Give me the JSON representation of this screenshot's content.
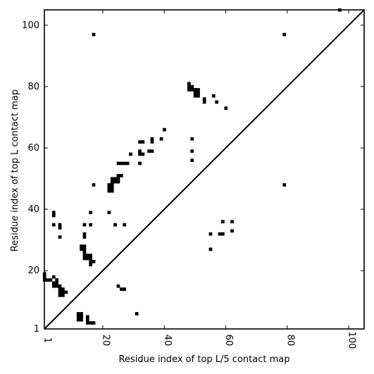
{
  "chart_data": {
    "type": "scatter",
    "title": "",
    "xlabel": "Residue index of top L/5 contact map",
    "ylabel": "Residue index of top L contact map",
    "xlim": [
      1,
      105
    ],
    "ylim": [
      1,
      105
    ],
    "x_ticks": [
      1,
      20,
      40,
      60,
      80,
      100
    ],
    "y_ticks": [
      1,
      20,
      40,
      60,
      80,
      100
    ],
    "x_tick_labels": [
      "1",
      "20",
      "40",
      "60",
      "80",
      "100"
    ],
    "y_tick_labels": [
      "1",
      "20",
      "40",
      "60",
      "80",
      "100"
    ],
    "grid": false,
    "diagonal": true,
    "marker_color": "#000000",
    "upper_contacts": [
      [
        1,
        19
      ],
      [
        1,
        18
      ],
      [
        1,
        17
      ],
      [
        2,
        17
      ],
      [
        3,
        17
      ],
      [
        4,
        16
      ],
      [
        4,
        15
      ],
      [
        5,
        15
      ],
      [
        4,
        18
      ],
      [
        5,
        17
      ],
      [
        5,
        16
      ],
      [
        6,
        15
      ],
      [
        6,
        14
      ],
      [
        7,
        14
      ],
      [
        6,
        13
      ],
      [
        7,
        13
      ],
      [
        6,
        12
      ],
      [
        7,
        12
      ],
      [
        8,
        13
      ],
      [
        4,
        39
      ],
      [
        4,
        38
      ],
      [
        4,
        35
      ],
      [
        6,
        35
      ],
      [
        6,
        34
      ],
      [
        6,
        31
      ],
      [
        13,
        28
      ],
      [
        14,
        28
      ],
      [
        13,
        27
      ],
      [
        14,
        27
      ],
      [
        14,
        26
      ],
      [
        14,
        25
      ],
      [
        15,
        25
      ],
      [
        16,
        25
      ],
      [
        14,
        24
      ],
      [
        15,
        24
      ],
      [
        16,
        24
      ],
      [
        16,
        23
      ],
      [
        17,
        23
      ],
      [
        16,
        22
      ],
      [
        14,
        35
      ],
      [
        14,
        32
      ],
      [
        14,
        31
      ],
      [
        16,
        35
      ],
      [
        16,
        39
      ],
      [
        17,
        48
      ],
      [
        17,
        97
      ],
      [
        22,
        48
      ],
      [
        23,
        48
      ],
      [
        22,
        47
      ],
      [
        23,
        47
      ],
      [
        22,
        46
      ],
      [
        23,
        46
      ],
      [
        23,
        49
      ],
      [
        24,
        49
      ],
      [
        25,
        49
      ],
      [
        23,
        50
      ],
      [
        24,
        50
      ],
      [
        25,
        50
      ],
      [
        25,
        51
      ],
      [
        26,
        51
      ],
      [
        22,
        39
      ],
      [
        24,
        35
      ],
      [
        27,
        35
      ],
      [
        25,
        55
      ],
      [
        26,
        55
      ],
      [
        27,
        55
      ],
      [
        28,
        55
      ],
      [
        29,
        58
      ],
      [
        32,
        55
      ],
      [
        32,
        58
      ],
      [
        33,
        58
      ],
      [
        32,
        59
      ],
      [
        32,
        62
      ],
      [
        33,
        62
      ],
      [
        35,
        59
      ],
      [
        36,
        59
      ],
      [
        36,
        62
      ],
      [
        36,
        63
      ],
      [
        39,
        63
      ],
      [
        40,
        66
      ],
      [
        48,
        81
      ],
      [
        48,
        80
      ],
      [
        49,
        80
      ],
      [
        48,
        79
      ],
      [
        49,
        79
      ],
      [
        50,
        79
      ],
      [
        51,
        79
      ],
      [
        50,
        78
      ],
      [
        51,
        78
      ],
      [
        50,
        77
      ],
      [
        51,
        77
      ],
      [
        49,
        63
      ],
      [
        49,
        59
      ],
      [
        49,
        56
      ],
      [
        53,
        76
      ],
      [
        53,
        75
      ],
      [
        56,
        77
      ],
      [
        57,
        75
      ],
      [
        60,
        73
      ],
      [
        79,
        97
      ],
      [
        97,
        105
      ]
    ],
    "lower_contacts": [
      [
        12,
        6
      ],
      [
        13,
        6
      ],
      [
        12,
        5
      ],
      [
        13,
        5
      ],
      [
        15,
        5
      ],
      [
        12,
        4
      ],
      [
        13,
        4
      ],
      [
        15,
        4
      ],
      [
        15,
        3
      ],
      [
        16,
        3
      ],
      [
        17,
        3
      ],
      [
        25,
        15
      ],
      [
        26,
        14
      ],
      [
        27,
        14
      ],
      [
        31,
        6
      ],
      [
        55,
        32
      ],
      [
        55,
        27
      ],
      [
        58,
        32
      ],
      [
        59,
        32
      ],
      [
        59,
        36
      ],
      [
        62,
        36
      ],
      [
        62,
        33
      ],
      [
        79,
        48
      ]
    ]
  }
}
